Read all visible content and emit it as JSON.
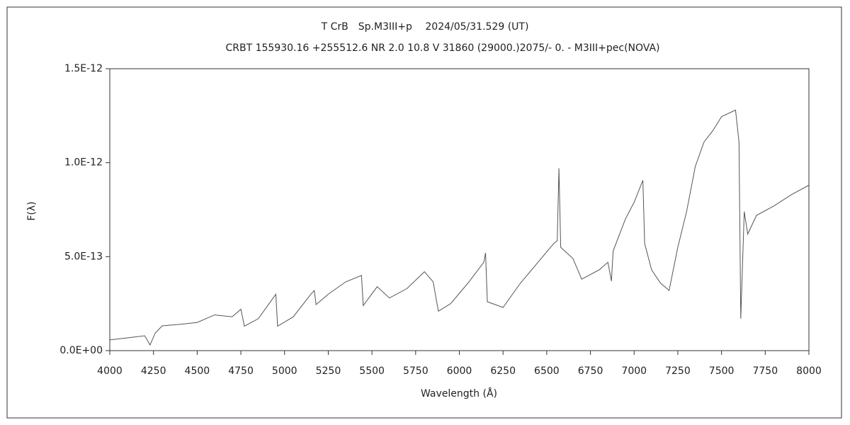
{
  "chart_data": {
    "type": "line",
    "title": "T CrB　Sp.M3III+p　 2024/05/31.529 (UT)",
    "subtitle": "CRBT 155930.16 +255512.6 NR 2.0 10.8 V 31860 (29000.)2075/-  0. - M3III+pec(NOVA)",
    "x_label": "Wavelength (Å)",
    "y_label": "F(λ)",
    "x": [
      4000,
      4100,
      4200,
      4230,
      4260,
      4300,
      4400,
      4500,
      4600,
      4700,
      4750,
      4770,
      4850,
      4950,
      4960,
      5050,
      5150,
      5170,
      5180,
      5250,
      5350,
      5440,
      5450,
      5530,
      5600,
      5700,
      5800,
      5850,
      5880,
      5950,
      6050,
      6140,
      6150,
      6160,
      6250,
      6350,
      6450,
      6540,
      6560,
      6570,
      6580,
      6650,
      6700,
      6800,
      6850,
      6870,
      6880,
      6950,
      7000,
      7050,
      7060,
      7100,
      7150,
      7200,
      7250,
      7300,
      7350,
      7400,
      7450,
      7500,
      7580,
      7600,
      7610,
      7630,
      7650,
      7700,
      7800,
      7900,
      8000
    ],
    "series": [
      {
        "name": "F(λ)",
        "color": "#555555",
        "values": [
          5.7e-14,
          6.8e-14,
          7.9e-14,
          3e-14,
          9.4e-14,
          1.32e-13,
          1.4e-13,
          1.5e-13,
          1.9e-13,
          1.8e-13,
          2.2e-13,
          1.3e-13,
          1.7e-13,
          3e-13,
          1.3e-13,
          1.8e-13,
          3e-13,
          3.2e-13,
          2.45e-13,
          3e-13,
          3.66e-13,
          4e-13,
          2.4e-13,
          3.4e-13,
          2.8e-13,
          3.3e-13,
          4.2e-13,
          3.66e-13,
          2.1e-13,
          2.5e-13,
          3.6e-13,
          4.7e-13,
          5.2e-13,
          2.6e-13,
          2.3e-13,
          3.6e-13,
          4.7e-13,
          5.7e-13,
          5.85e-13,
          9.7e-13,
          5.5e-13,
          4.9e-13,
          3.8e-13,
          4.3e-13,
          4.7e-13,
          3.7e-13,
          5.3e-13,
          7e-13,
          7.9e-13,
          9.06e-13,
          5.7e-13,
          4.3e-13,
          3.6e-13,
          3.2e-13,
          5.5e-13,
          7.4e-13,
          9.8e-13,
          1.11e-12,
          1.17e-12,
          1.245e-12,
          1.28e-12,
          1.11e-12,
          1.7e-13,
          7.4e-13,
          6.2e-13,
          7.2e-13,
          7.7e-13,
          8.3e-13,
          8.8e-13
        ]
      }
    ],
    "xlim": [
      4000,
      8000
    ],
    "xticks": [
      4000,
      4250,
      4500,
      4750,
      5000,
      5250,
      5500,
      5750,
      6000,
      6250,
      6500,
      6750,
      7000,
      7250,
      7500,
      7750,
      8000
    ],
    "ylim": [
      0,
      1.5e-12
    ],
    "yticks": [
      {
        "value": 0,
        "label": "0.0E+00"
      },
      {
        "value": 5e-13,
        "label": "5.0E-13"
      },
      {
        "value": 1e-12,
        "label": "1.0E-12"
      },
      {
        "value": 1.5e-12,
        "label": "1.5E-12"
      }
    ],
    "grid": false
  }
}
